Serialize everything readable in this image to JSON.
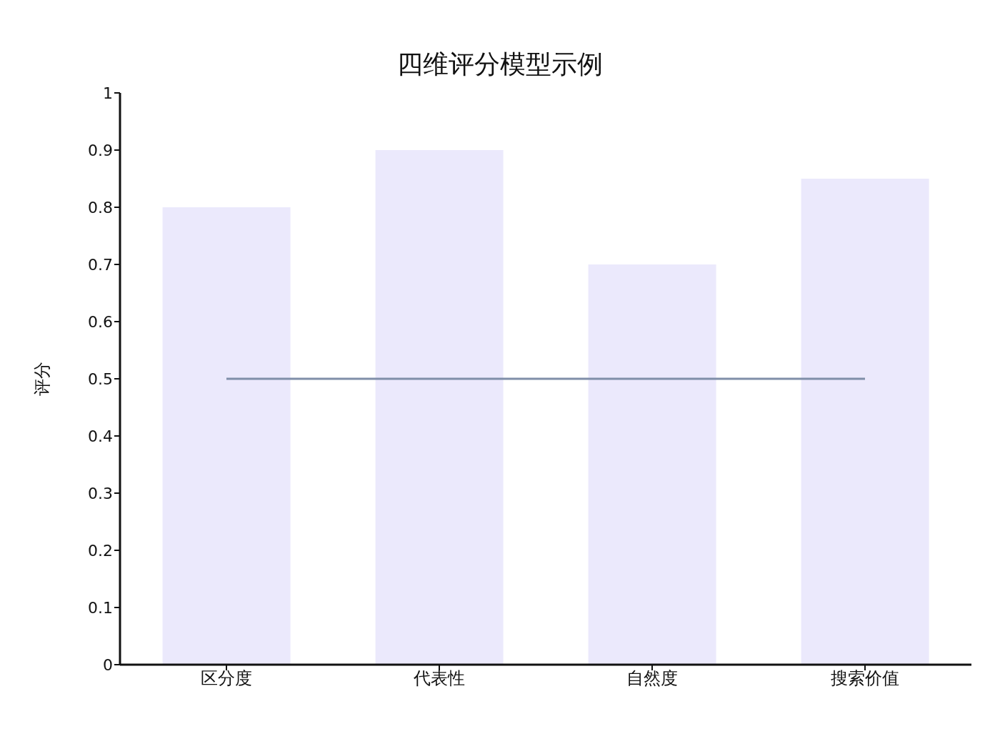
{
  "chart_data": {
    "type": "bar",
    "title": "四维评分模型示例",
    "ylabel": "评分",
    "categories": [
      "区分度",
      "代表性",
      "自然度",
      "搜索价值"
    ],
    "series": [
      {
        "color": "#ebe9fc",
        "values": [
          0.8,
          0.9,
          0.7,
          0.85
        ]
      },
      {
        "type": "line",
        "color": "#7f8ea8",
        "values": [
          0.5,
          0.5,
          0.5,
          0.5
        ]
      }
    ],
    "ylim": [
      0,
      1
    ],
    "yticks": [
      0,
      0.1,
      0.2,
      0.3,
      0.4,
      0.5,
      0.6,
      0.7,
      0.8,
      0.9,
      1
    ],
    "grid": false,
    "marker": "none",
    "line_style": "solid"
  }
}
